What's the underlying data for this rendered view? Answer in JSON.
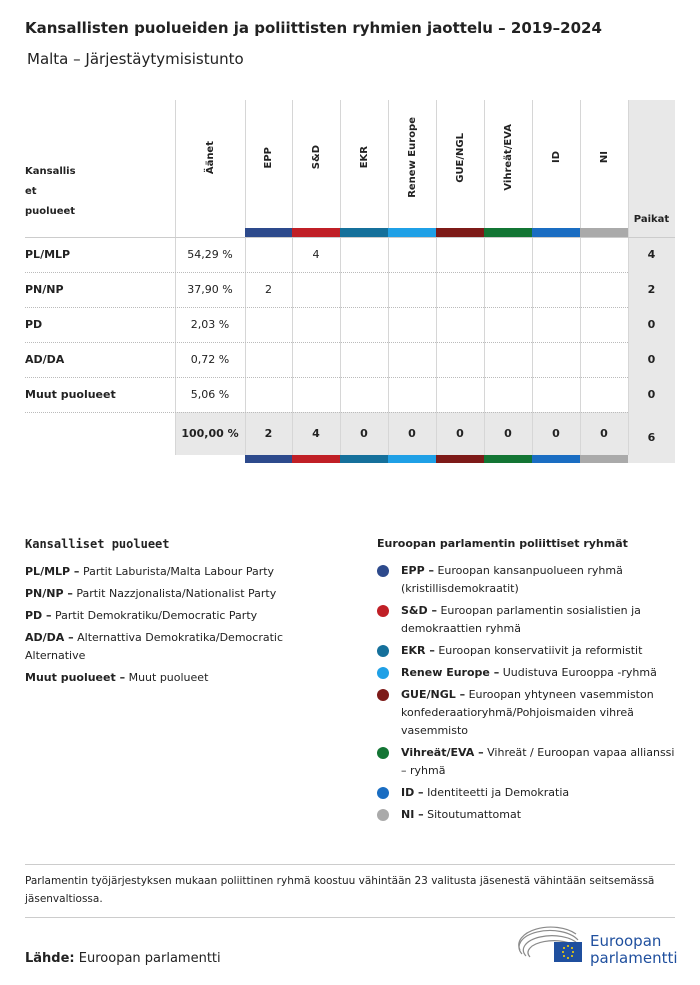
{
  "header": {
    "title": "Kansallisten puolueiden ja poliittisten ryhmien jaottelu – 2019–2024",
    "subtitle": "Malta – Järjestäytymisistunto"
  },
  "table": {
    "party_header_lines": [
      "Kansallis",
      "et",
      "puolueet"
    ],
    "votes_header": "Äänet",
    "seats_header": "Paikat",
    "groups": [
      {
        "name": "EPP",
        "color": "#2d4a8c"
      },
      {
        "name": "S&D",
        "color": "#c01f26"
      },
      {
        "name": "EKR",
        "color": "#15709b"
      },
      {
        "name": "Renew Europe",
        "color": "#1fa0e6"
      },
      {
        "name": "GUE/NGL",
        "color": "#7d1a18"
      },
      {
        "name": "Vihreät/EVA",
        "color": "#137534"
      },
      {
        "name": "ID",
        "color": "#1a6dc2"
      },
      {
        "name": "NI",
        "color": "#aaaaaa"
      }
    ],
    "rows": [
      {
        "party": "PL/MLP",
        "votes": "54,29 %",
        "seats_by_group": [
          null,
          4,
          null,
          null,
          null,
          null,
          null,
          null
        ],
        "seats": 4
      },
      {
        "party": "PN/NP",
        "votes": "37,90 %",
        "seats_by_group": [
          2,
          null,
          null,
          null,
          null,
          null,
          null,
          null
        ],
        "seats": 2
      },
      {
        "party": "PD",
        "votes": "2,03 %",
        "seats_by_group": [
          null,
          null,
          null,
          null,
          null,
          null,
          null,
          null
        ],
        "seats": 0
      },
      {
        "party": "AD/DA",
        "votes": "0,72 %",
        "seats_by_group": [
          null,
          null,
          null,
          null,
          null,
          null,
          null,
          null
        ],
        "seats": 0
      },
      {
        "party": "Muut puolueet",
        "votes": "5,06 %",
        "seats_by_group": [
          null,
          null,
          null,
          null,
          null,
          null,
          null,
          null
        ],
        "seats": 0
      }
    ],
    "total": {
      "votes": "100,00 %",
      "seats_by_group": [
        2,
        4,
        0,
        0,
        0,
        0,
        0,
        0
      ],
      "seats": 6
    }
  },
  "national_legend": {
    "title": "Kansalliset puolueet",
    "items": [
      {
        "abbr": "PL/MLP –",
        "name": "Partit Laburista/Malta Labour Party"
      },
      {
        "abbr": "PN/NP –",
        "name": "Partit Nazzjonalista/Nationalist Party"
      },
      {
        "abbr": "PD –",
        "name": "Partit Demokratiku/Democratic Party"
      },
      {
        "abbr": "AD/DA –",
        "name": "Alternattiva Demokratika/Democratic Alternative"
      },
      {
        "abbr": "Muut puolueet –",
        "name": "Muut puolueet"
      }
    ]
  },
  "group_legend": {
    "title": "Euroopan parlamentin poliittiset ryhmät",
    "items": [
      {
        "abbr": "EPP –",
        "name": "Euroopan kansanpuolueen ryhmä (kristillisdemokraatit)"
      },
      {
        "abbr": "S&D –",
        "name": "Euroopan parlamentin sosialistien ja demokraattien ryhmä"
      },
      {
        "abbr": "EKR –",
        "name": "Euroopan konservatiivit ja reformistit"
      },
      {
        "abbr": "Renew Europe –",
        "name": "Uudistuva Eurooppa -ryhmä"
      },
      {
        "abbr": "GUE/NGL –",
        "name": "Euroopan yhtyneen vasemmiston konfederaatioryhmä/Pohjoismaiden vihreä vasemmisto"
      },
      {
        "abbr": "Vihreät/EVA –",
        "name": "Vihreät / Euroopan vapaa allianssi – ryhmä"
      },
      {
        "abbr": "ID –",
        "name": "Identiteetti ja Demokratia"
      },
      {
        "abbr": "NI –",
        "name": "Sitoutumattomat"
      }
    ]
  },
  "note": "Parlamentin työjärjestyksen mukaan poliittinen ryhmä koostuu vähintään 23 valitusta jäsenestä vähintään seitsemässä jäsenvaltiossa.",
  "source": {
    "label": "Lähde:",
    "text": "Euroopan parlamentti"
  },
  "logo_lines": [
    "Euroopan",
    "parlamentti"
  ]
}
